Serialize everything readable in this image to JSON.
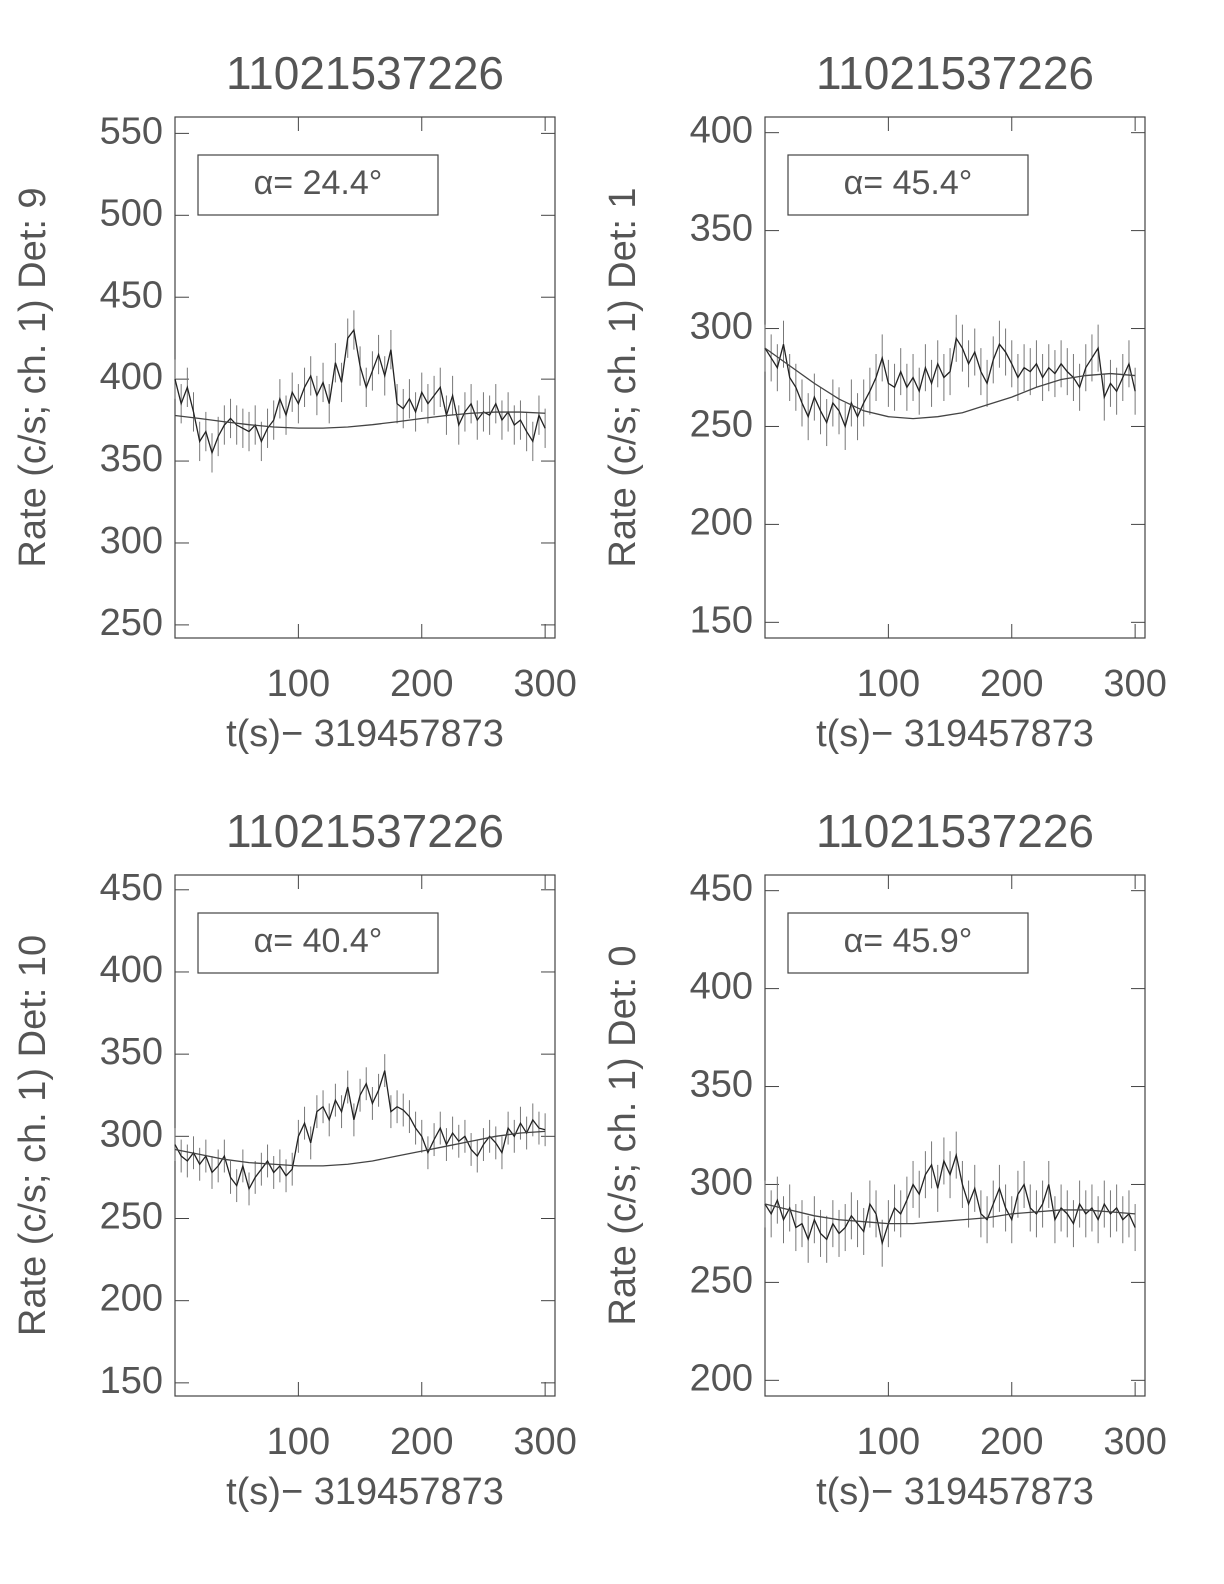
{
  "chart_data": [
    {
      "type": "line",
      "title": "11021537226",
      "xlabel": "t(s)− 319457873",
      "ylabel": "Rate (c/s; ch. 1) Det: 9",
      "annotation": "α= 24.4°",
      "x": [
        0,
        5,
        10,
        15,
        20,
        25,
        30,
        35,
        40,
        45,
        50,
        55,
        60,
        65,
        70,
        75,
        80,
        85,
        90,
        95,
        100,
        105,
        110,
        115,
        120,
        125,
        130,
        135,
        140,
        145,
        150,
        155,
        160,
        165,
        170,
        175,
        180,
        185,
        190,
        195,
        200,
        205,
        210,
        215,
        220,
        225,
        230,
        235,
        240,
        245,
        250,
        255,
        260,
        265,
        270,
        275,
        280,
        285,
        290,
        295,
        300
      ],
      "xlim": [
        0,
        308
      ],
      "xticks": [
        100,
        200,
        300
      ],
      "ylim": [
        242,
        560
      ],
      "yticks": [
        250,
        300,
        350,
        400,
        450,
        500,
        550
      ],
      "series": [
        {
          "color": "#222",
          "error": 12,
          "values": [
            400,
            385,
            395,
            380,
            362,
            368,
            355,
            365,
            372,
            376,
            372,
            370,
            368,
            372,
            362,
            370,
            375,
            388,
            378,
            392,
            385,
            395,
            402,
            390,
            398,
            385,
            410,
            398,
            425,
            430,
            408,
            395,
            405,
            415,
            402,
            418,
            385,
            382,
            388,
            380,
            392,
            385,
            390,
            395,
            378,
            390,
            372,
            380,
            385,
            375,
            380,
            378,
            385,
            375,
            380,
            372,
            375,
            368,
            362,
            378,
            370
          ]
        },
        {
          "color": "#444",
          "x": [
            0,
            20,
            40,
            60,
            80,
            100,
            120,
            140,
            160,
            180,
            200,
            220,
            240,
            260,
            280,
            300
          ],
          "values": [
            377.8,
            376.0,
            374.0,
            372.2,
            370.8,
            370.1,
            370.1,
            370.8,
            372.2,
            374.0,
            376.0,
            377.8,
            379.2,
            379.9,
            379.9,
            379.2
          ]
        }
      ]
    },
    {
      "type": "line",
      "title": "11021537226",
      "xlabel": "t(s)− 319457873",
      "ylabel": "Rate (c/s; ch. 1) Det: 1",
      "annotation": "α= 45.4°",
      "x": [
        0,
        5,
        10,
        15,
        20,
        25,
        30,
        35,
        40,
        45,
        50,
        55,
        60,
        65,
        70,
        75,
        80,
        85,
        90,
        95,
        100,
        105,
        110,
        115,
        120,
        125,
        130,
        135,
        140,
        145,
        150,
        155,
        160,
        165,
        170,
        175,
        180,
        185,
        190,
        195,
        200,
        205,
        210,
        215,
        220,
        225,
        230,
        235,
        240,
        245,
        250,
        255,
        260,
        265,
        270,
        275,
        280,
        285,
        290,
        295,
        300
      ],
      "xlim": [
        0,
        308
      ],
      "xticks": [
        100,
        200,
        300
      ],
      "ylim": [
        142,
        408
      ],
      "yticks": [
        150,
        200,
        250,
        300,
        350,
        400
      ],
      "series": [
        {
          "color": "#222",
          "error": 12,
          "values": [
            290,
            285,
            280,
            292,
            275,
            270,
            262,
            255,
            265,
            258,
            252,
            262,
            258,
            250,
            262,
            255,
            262,
            268,
            275,
            285,
            272,
            270,
            278,
            270,
            275,
            268,
            280,
            272,
            282,
            275,
            278,
            295,
            290,
            282,
            288,
            278,
            272,
            284,
            292,
            288,
            282,
            275,
            280,
            278,
            282,
            275,
            280,
            277,
            282,
            278,
            275,
            270,
            280,
            285,
            290,
            265,
            272,
            268,
            275,
            282,
            268
          ]
        },
        {
          "color": "#444",
          "x": [
            0,
            20,
            40,
            60,
            80,
            100,
            120,
            140,
            160,
            180,
            200,
            220,
            240,
            260,
            280,
            300
          ],
          "values": [
            290,
            281,
            272,
            264,
            258,
            255,
            254,
            255,
            257,
            261,
            265,
            270,
            274,
            276,
            277,
            276
          ]
        }
      ]
    },
    {
      "type": "line",
      "title": "11021537226",
      "xlabel": "t(s)− 319457873",
      "ylabel": "Rate (c/s; ch. 1) Det: 10",
      "annotation": "α= 40.4°",
      "x": [
        0,
        5,
        10,
        15,
        20,
        25,
        30,
        35,
        40,
        45,
        50,
        55,
        60,
        65,
        70,
        75,
        80,
        85,
        90,
        95,
        100,
        105,
        110,
        115,
        120,
        125,
        130,
        135,
        140,
        145,
        150,
        155,
        160,
        165,
        170,
        175,
        180,
        185,
        190,
        195,
        200,
        205,
        210,
        215,
        220,
        225,
        230,
        235,
        240,
        245,
        250,
        255,
        260,
        265,
        270,
        275,
        280,
        285,
        290,
        295,
        300
      ],
      "xlim": [
        0,
        308
      ],
      "xticks": [
        100,
        200,
        300
      ],
      "ylim": [
        142,
        459
      ],
      "yticks": [
        150,
        200,
        250,
        300,
        350,
        400,
        450
      ],
      "series": [
        {
          "color": "#222",
          "error": 10,
          "values": [
            295,
            288,
            285,
            290,
            283,
            288,
            278,
            282,
            288,
            275,
            270,
            282,
            268,
            275,
            280,
            285,
            278,
            282,
            276,
            280,
            300,
            308,
            296,
            315,
            318,
            310,
            322,
            315,
            330,
            310,
            325,
            332,
            320,
            328,
            340,
            315,
            318,
            316,
            312,
            305,
            300,
            290,
            298,
            305,
            295,
            302,
            297,
            300,
            292,
            288,
            295,
            300,
            296,
            290,
            305,
            300,
            308,
            302,
            310,
            305,
            304
          ]
        },
        {
          "color": "#444",
          "x": [
            0,
            20,
            40,
            60,
            80,
            100,
            120,
            140,
            160,
            180,
            200,
            220,
            240,
            260,
            280,
            300
          ],
          "values": [
            292,
            289,
            286,
            284,
            283,
            282,
            282,
            283,
            285,
            288,
            291,
            294,
            297,
            300,
            302,
            303
          ]
        }
      ]
    },
    {
      "type": "line",
      "title": "11021537226",
      "xlabel": "t(s)− 319457873",
      "ylabel": "Rate (c/s; ch. 1) Det: 0",
      "annotation": "α= 45.9°",
      "x": [
        0,
        5,
        10,
        15,
        20,
        25,
        30,
        35,
        40,
        45,
        50,
        55,
        60,
        65,
        70,
        75,
        80,
        85,
        90,
        95,
        100,
        105,
        110,
        115,
        120,
        125,
        130,
        135,
        140,
        145,
        150,
        155,
        160,
        165,
        170,
        175,
        180,
        185,
        190,
        195,
        200,
        205,
        210,
        215,
        220,
        225,
        230,
        235,
        240,
        245,
        250,
        255,
        260,
        265,
        270,
        275,
        280,
        285,
        290,
        295,
        300
      ],
      "xlim": [
        0,
        308
      ],
      "xticks": [
        100,
        200,
        300
      ],
      "ylim": [
        192,
        458
      ],
      "yticks": [
        200,
        250,
        300,
        350,
        400,
        450
      ],
      "series": [
        {
          "color": "#222",
          "error": 12,
          "values": [
            290,
            285,
            292,
            282,
            288,
            278,
            280,
            272,
            282,
            275,
            272,
            280,
            275,
            278,
            284,
            280,
            276,
            290,
            285,
            270,
            280,
            288,
            285,
            292,
            300,
            295,
            305,
            310,
            298,
            312,
            305,
            315,
            300,
            290,
            298,
            285,
            282,
            290,
            298,
            288,
            282,
            295,
            300,
            288,
            285,
            290,
            300,
            282,
            288,
            285,
            280,
            290,
            285,
            288,
            282,
            290,
            285,
            288,
            282,
            285,
            278
          ]
        },
        {
          "color": "#444",
          "x": [
            0,
            20,
            40,
            60,
            80,
            100,
            120,
            140,
            160,
            180,
            200,
            220,
            240,
            260,
            280,
            300
          ],
          "values": [
            290,
            287,
            284,
            282,
            281,
            280,
            280,
            281,
            282,
            283,
            285,
            286,
            287,
            287,
            286,
            285
          ]
        }
      ]
    }
  ]
}
